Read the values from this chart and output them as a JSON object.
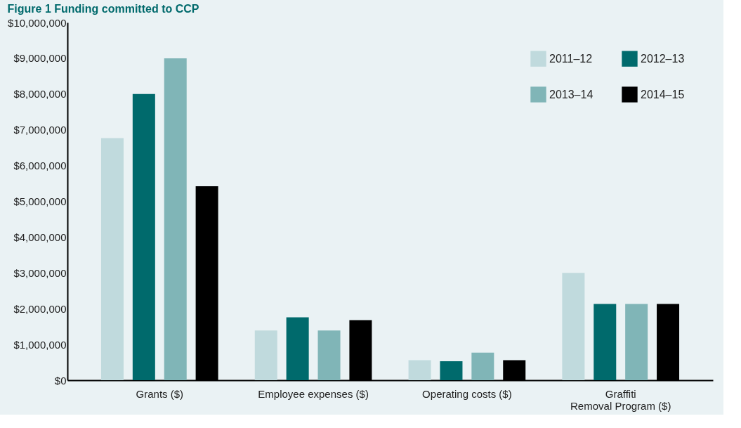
{
  "chart_data": {
    "type": "bar",
    "title": "Figure 1 Funding committed to CCP",
    "categories": [
      "Grants ($)",
      "Employee expenses ($)",
      "Operating costs ($)",
      "Graffiti Removal Program ($)"
    ],
    "series": [
      {
        "name": "2011–12",
        "color": "#c0dadd",
        "values": [
          6770000,
          1390000,
          560000,
          3000000
        ]
      },
      {
        "name": "2012–13",
        "color": "#006a6c",
        "values": [
          8000000,
          1760000,
          530000,
          2130000
        ]
      },
      {
        "name": "2013–14",
        "color": "#80b5b7",
        "values": [
          9000000,
          1390000,
          770000,
          2130000
        ]
      },
      {
        "name": "2014–15",
        "color": "#000000",
        "values": [
          5420000,
          1680000,
          560000,
          2130000
        ]
      }
    ],
    "ylim": [
      0,
      10000000
    ],
    "yticks": [
      {
        "value": 0,
        "label": "$0"
      },
      {
        "value": 1000000,
        "label": "$1,000,000"
      },
      {
        "value": 2000000,
        "label": "$2,000,000"
      },
      {
        "value": 3000000,
        "label": "$3,000,000"
      },
      {
        "value": 4000000,
        "label": "$4,000,000"
      },
      {
        "value": 5000000,
        "label": "$5,000,000"
      },
      {
        "value": 6000000,
        "label": "$6,000,000"
      },
      {
        "value": 7000000,
        "label": "$7,000,000"
      },
      {
        "value": 8000000,
        "label": "$8,000,000"
      },
      {
        "value": 9000000,
        "label": "$9,000,000"
      },
      {
        "value": 10000000,
        "label": "$10,000,000"
      }
    ],
    "grid": false,
    "legend": "top right"
  }
}
